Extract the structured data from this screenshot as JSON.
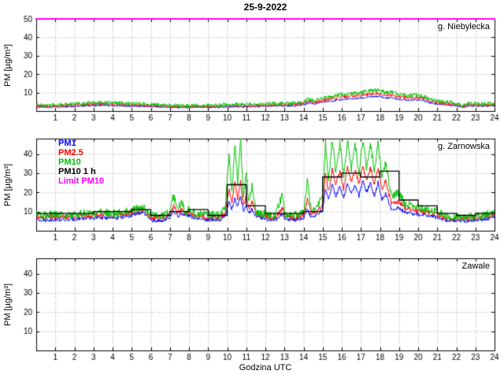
{
  "title": "25-9-2022",
  "accent_colors": {
    "pm1": "#0000ff",
    "pm25": "#ff0000",
    "pm10": "#00c400",
    "pm10_1h": "#000000",
    "limit": "#ff00ff"
  },
  "chart_data": [
    {
      "type": "line",
      "title": "g. Niebylecka",
      "ylabel": "PM [µg/m³]",
      "xlabel": "",
      "xlim": [
        0,
        24
      ],
      "ylim": [
        0,
        50
      ],
      "xticks": [
        1,
        2,
        3,
        4,
        5,
        6,
        7,
        8,
        9,
        10,
        11,
        12,
        13,
        14,
        15,
        16,
        17,
        18,
        19,
        20,
        21,
        22,
        23,
        24
      ],
      "yticks": [
        10,
        20,
        30,
        40,
        50
      ],
      "grid": true,
      "x": [
        0,
        0.5,
        1,
        1.5,
        2,
        2.5,
        3,
        3.5,
        4,
        4.5,
        5,
        5.5,
        6,
        6.5,
        7,
        7.5,
        8,
        8.5,
        9,
        9.5,
        10,
        10.5,
        11,
        11.5,
        12,
        12.5,
        13,
        13.5,
        14,
        14.3,
        14.6,
        15,
        15.5,
        16,
        16.5,
        17,
        17.5,
        18,
        18.3,
        18.6,
        19,
        19.5,
        20,
        20.3,
        20.6,
        21,
        21.5,
        22,
        22.3,
        22.6,
        23,
        23.5,
        24
      ],
      "series": [
        {
          "name": "PM1",
          "color": "#0000ff",
          "style": "noisy",
          "noise": 0.5,
          "values": [
            2.2,
            2.0,
            2.2,
            2.4,
            2.6,
            2.8,
            3.0,
            3.1,
            2.9,
            2.8,
            2.6,
            2.5,
            2.4,
            2.2,
            2.0,
            1.9,
            1.9,
            2.0,
            2.0,
            2.1,
            2.2,
            2.3,
            2.3,
            2.4,
            2.6,
            2.7,
            2.8,
            2.9,
            3.3,
            4.5,
            3.8,
            4.8,
            5.5,
            6.2,
            6.6,
            7.0,
            7.7,
            8.0,
            7.0,
            7.3,
            6.3,
            6.0,
            6.1,
            5.6,
            4.6,
            3.8,
            3.3,
            2.9,
            2.1,
            2.7,
            2.7,
            2.6,
            2.9
          ]
        },
        {
          "name": "PM2.5",
          "color": "#ff0000",
          "style": "noisy",
          "noise": 0.8,
          "values": [
            2.8,
            2.6,
            2.8,
            3.0,
            3.3,
            3.5,
            3.8,
            3.9,
            3.7,
            3.5,
            3.3,
            3.1,
            3.0,
            2.7,
            2.5,
            2.4,
            2.4,
            2.5,
            2.5,
            2.6,
            2.8,
            2.9,
            2.9,
            3.0,
            3.2,
            3.3,
            3.4,
            3.6,
            4.0,
            5.5,
            4.6,
            5.8,
            6.7,
            7.5,
            8.0,
            8.5,
            9.2,
            9.7,
            8.4,
            8.8,
            7.6,
            7.2,
            7.4,
            6.7,
            5.5,
            4.6,
            4.0,
            3.5,
            2.5,
            3.3,
            3.3,
            3.1,
            3.5
          ]
        },
        {
          "name": "PM10",
          "color": "#00c400",
          "style": "noisy",
          "noise": 1.1,
          "values": [
            3.5,
            3.2,
            3.4,
            3.6,
            4.0,
            4.2,
            4.5,
            4.6,
            4.4,
            4.2,
            4.0,
            3.8,
            3.6,
            3.3,
            3.0,
            2.9,
            2.9,
            3.0,
            3.0,
            3.2,
            3.4,
            3.5,
            3.5,
            3.7,
            3.9,
            4.0,
            4.1,
            4.3,
            4.8,
            6.5,
            5.5,
            7.0,
            8.0,
            9.0,
            9.5,
            10.0,
            11.0,
            11.5,
            10.0,
            10.5,
            9.0,
            8.5,
            8.8,
            8.0,
            6.5,
            5.5,
            4.8,
            4.2,
            3.0,
            4.0,
            4.0,
            3.8,
            4.2
          ]
        },
        {
          "name": "Limit PM10",
          "color": "#ff00ff",
          "style": "hline",
          "value": 50
        }
      ]
    },
    {
      "type": "line",
      "title": "g. Zarnowska",
      "ylabel": "PM [µg/m³]",
      "xlabel": "",
      "xlim": [
        0,
        24
      ],
      "ylim": [
        0,
        48
      ],
      "xticks": [
        1,
        2,
        3,
        4,
        5,
        6,
        7,
        8,
        9,
        10,
        11,
        12,
        13,
        14,
        15,
        16,
        17,
        18,
        19,
        20,
        21,
        22,
        23,
        24
      ],
      "yticks": [
        10,
        20,
        30,
        40
      ],
      "grid": true,
      "legend": [
        {
          "label": "PM1",
          "color": "#0000ff"
        },
        {
          "label": "PM2.5",
          "color": "#ff0000"
        },
        {
          "label": "PM10",
          "color": "#00c400"
        },
        {
          "label": "PM10 1 h",
          "color": "#000000"
        },
        {
          "label": "Limit PM10",
          "color": "#ff00ff"
        }
      ],
      "x": [
        0,
        0.5,
        1,
        1.5,
        2,
        2.5,
        3,
        3.5,
        4,
        4.5,
        5,
        5.3,
        5.6,
        6,
        6.3,
        6.6,
        7,
        7.2,
        7.4,
        7.6,
        7.8,
        8,
        8.3,
        8.6,
        9,
        9.3,
        9.6,
        9.9,
        10.1,
        10.25,
        10.4,
        10.55,
        10.7,
        10.85,
        11,
        11.15,
        11.3,
        11.5,
        11.8,
        12,
        12.5,
        12.9,
        13,
        13.2,
        13.5,
        14,
        14.2,
        14.4,
        14.7,
        15,
        15.15,
        15.3,
        15.5,
        15.7,
        15.9,
        16.1,
        16.3,
        16.5,
        16.7,
        16.9,
        17.1,
        17.3,
        17.5,
        17.7,
        17.9,
        18.1,
        18.3,
        18.6,
        19,
        19.3,
        19.6,
        20,
        20.5,
        21,
        21.3,
        21.6,
        22,
        22.5,
        23,
        23.5,
        23.8,
        24
      ],
      "series": [
        {
          "name": "PM1",
          "color": "#0000ff",
          "style": "noisy",
          "noise": 1.0,
          "values": [
            6,
            5.5,
            6,
            5.5,
            6,
            6.5,
            6.5,
            7,
            6.5,
            7,
            8,
            9,
            9.5,
            5.5,
            5,
            5.5,
            7,
            10,
            7.5,
            9,
            7.5,
            8,
            6.5,
            6,
            5.5,
            6,
            5.5,
            8,
            15,
            11,
            17,
            13,
            18,
            10,
            13,
            9,
            11,
            7.5,
            6.5,
            6,
            5.5,
            9,
            6.5,
            6,
            5.5,
            6.5,
            11,
            7,
            8,
            11,
            22,
            16,
            24,
            18,
            23,
            17,
            25,
            19,
            24,
            18,
            26,
            20,
            25,
            18,
            25,
            16,
            19,
            11,
            12,
            9.5,
            9,
            8.5,
            8,
            7,
            5.5,
            5,
            5.5,
            5,
            5.5,
            6,
            6.5,
            7.5
          ]
        },
        {
          "name": "PM2.5",
          "color": "#ff0000",
          "style": "noisy",
          "noise": 1.3,
          "values": [
            7.5,
            7,
            7.5,
            7,
            7.5,
            8,
            8,
            8.5,
            8,
            8.5,
            9.5,
            10.5,
            11,
            7,
            6.5,
            7,
            8.5,
            13,
            9,
            11,
            9,
            9.5,
            8,
            7.5,
            7,
            7.5,
            7,
            10,
            22,
            14,
            25,
            17,
            26,
            13,
            18,
            11,
            15,
            9,
            8,
            7.5,
            7,
            12,
            8,
            7.5,
            7,
            8,
            16,
            9,
            10,
            14,
            30,
            20,
            32,
            24,
            31,
            22,
            33,
            25,
            32,
            24,
            34,
            26,
            33,
            24,
            33,
            22,
            26,
            14,
            15,
            12,
            11,
            10.5,
            9.5,
            8.5,
            7,
            6,
            6.5,
            6,
            6.5,
            7,
            8,
            9
          ]
        },
        {
          "name": "PM10",
          "color": "#00c400",
          "style": "noisy",
          "noise": 2.2,
          "values": [
            8.5,
            8,
            8.5,
            8,
            8.5,
            9,
            9,
            9.5,
            9,
            9.5,
            10.5,
            11.5,
            12,
            8,
            7.5,
            8,
            9.5,
            19,
            10,
            16,
            10,
            11,
            9,
            8.5,
            8,
            8.5,
            8,
            12,
            40,
            20,
            46,
            25,
            47,
            18,
            30,
            14,
            24,
            10,
            9,
            8.5,
            8,
            19,
            9,
            8.5,
            8,
            9,
            26,
            10,
            12,
            18,
            46,
            25,
            47,
            30,
            46,
            28,
            47,
            32,
            45,
            30,
            47,
            33,
            46,
            30,
            47,
            28,
            35,
            18,
            20,
            14,
            13,
            12,
            11,
            10,
            8,
            7,
            7.5,
            7,
            7.5,
            8,
            9,
            10.5
          ]
        },
        {
          "name": "PM10 1 h",
          "color": "#000000",
          "style": "step",
          "values": [
            9,
            9,
            9,
            10,
            10,
            11,
            8,
            10,
            11,
            8,
            24,
            13,
            9,
            9,
            10,
            28,
            30,
            28,
            31,
            16,
            13,
            9,
            8,
            9
          ]
        },
        {
          "name": "Limit PM10",
          "color": "#ff00ff",
          "style": "hline",
          "value": 50
        }
      ]
    },
    {
      "type": "line",
      "title": "Zawale",
      "ylabel": "PM [µg/m³]",
      "xlabel": "Godzina UTC",
      "xlim": [
        0,
        24
      ],
      "ylim": [
        0,
        48
      ],
      "xticks": [
        1,
        2,
        3,
        4,
        5,
        6,
        7,
        8,
        9,
        10,
        11,
        12,
        13,
        14,
        15,
        16,
        17,
        18,
        19,
        20,
        21,
        22,
        23,
        24
      ],
      "yticks": [
        10,
        20,
        30,
        40
      ],
      "grid": true,
      "x": [],
      "series": []
    }
  ]
}
